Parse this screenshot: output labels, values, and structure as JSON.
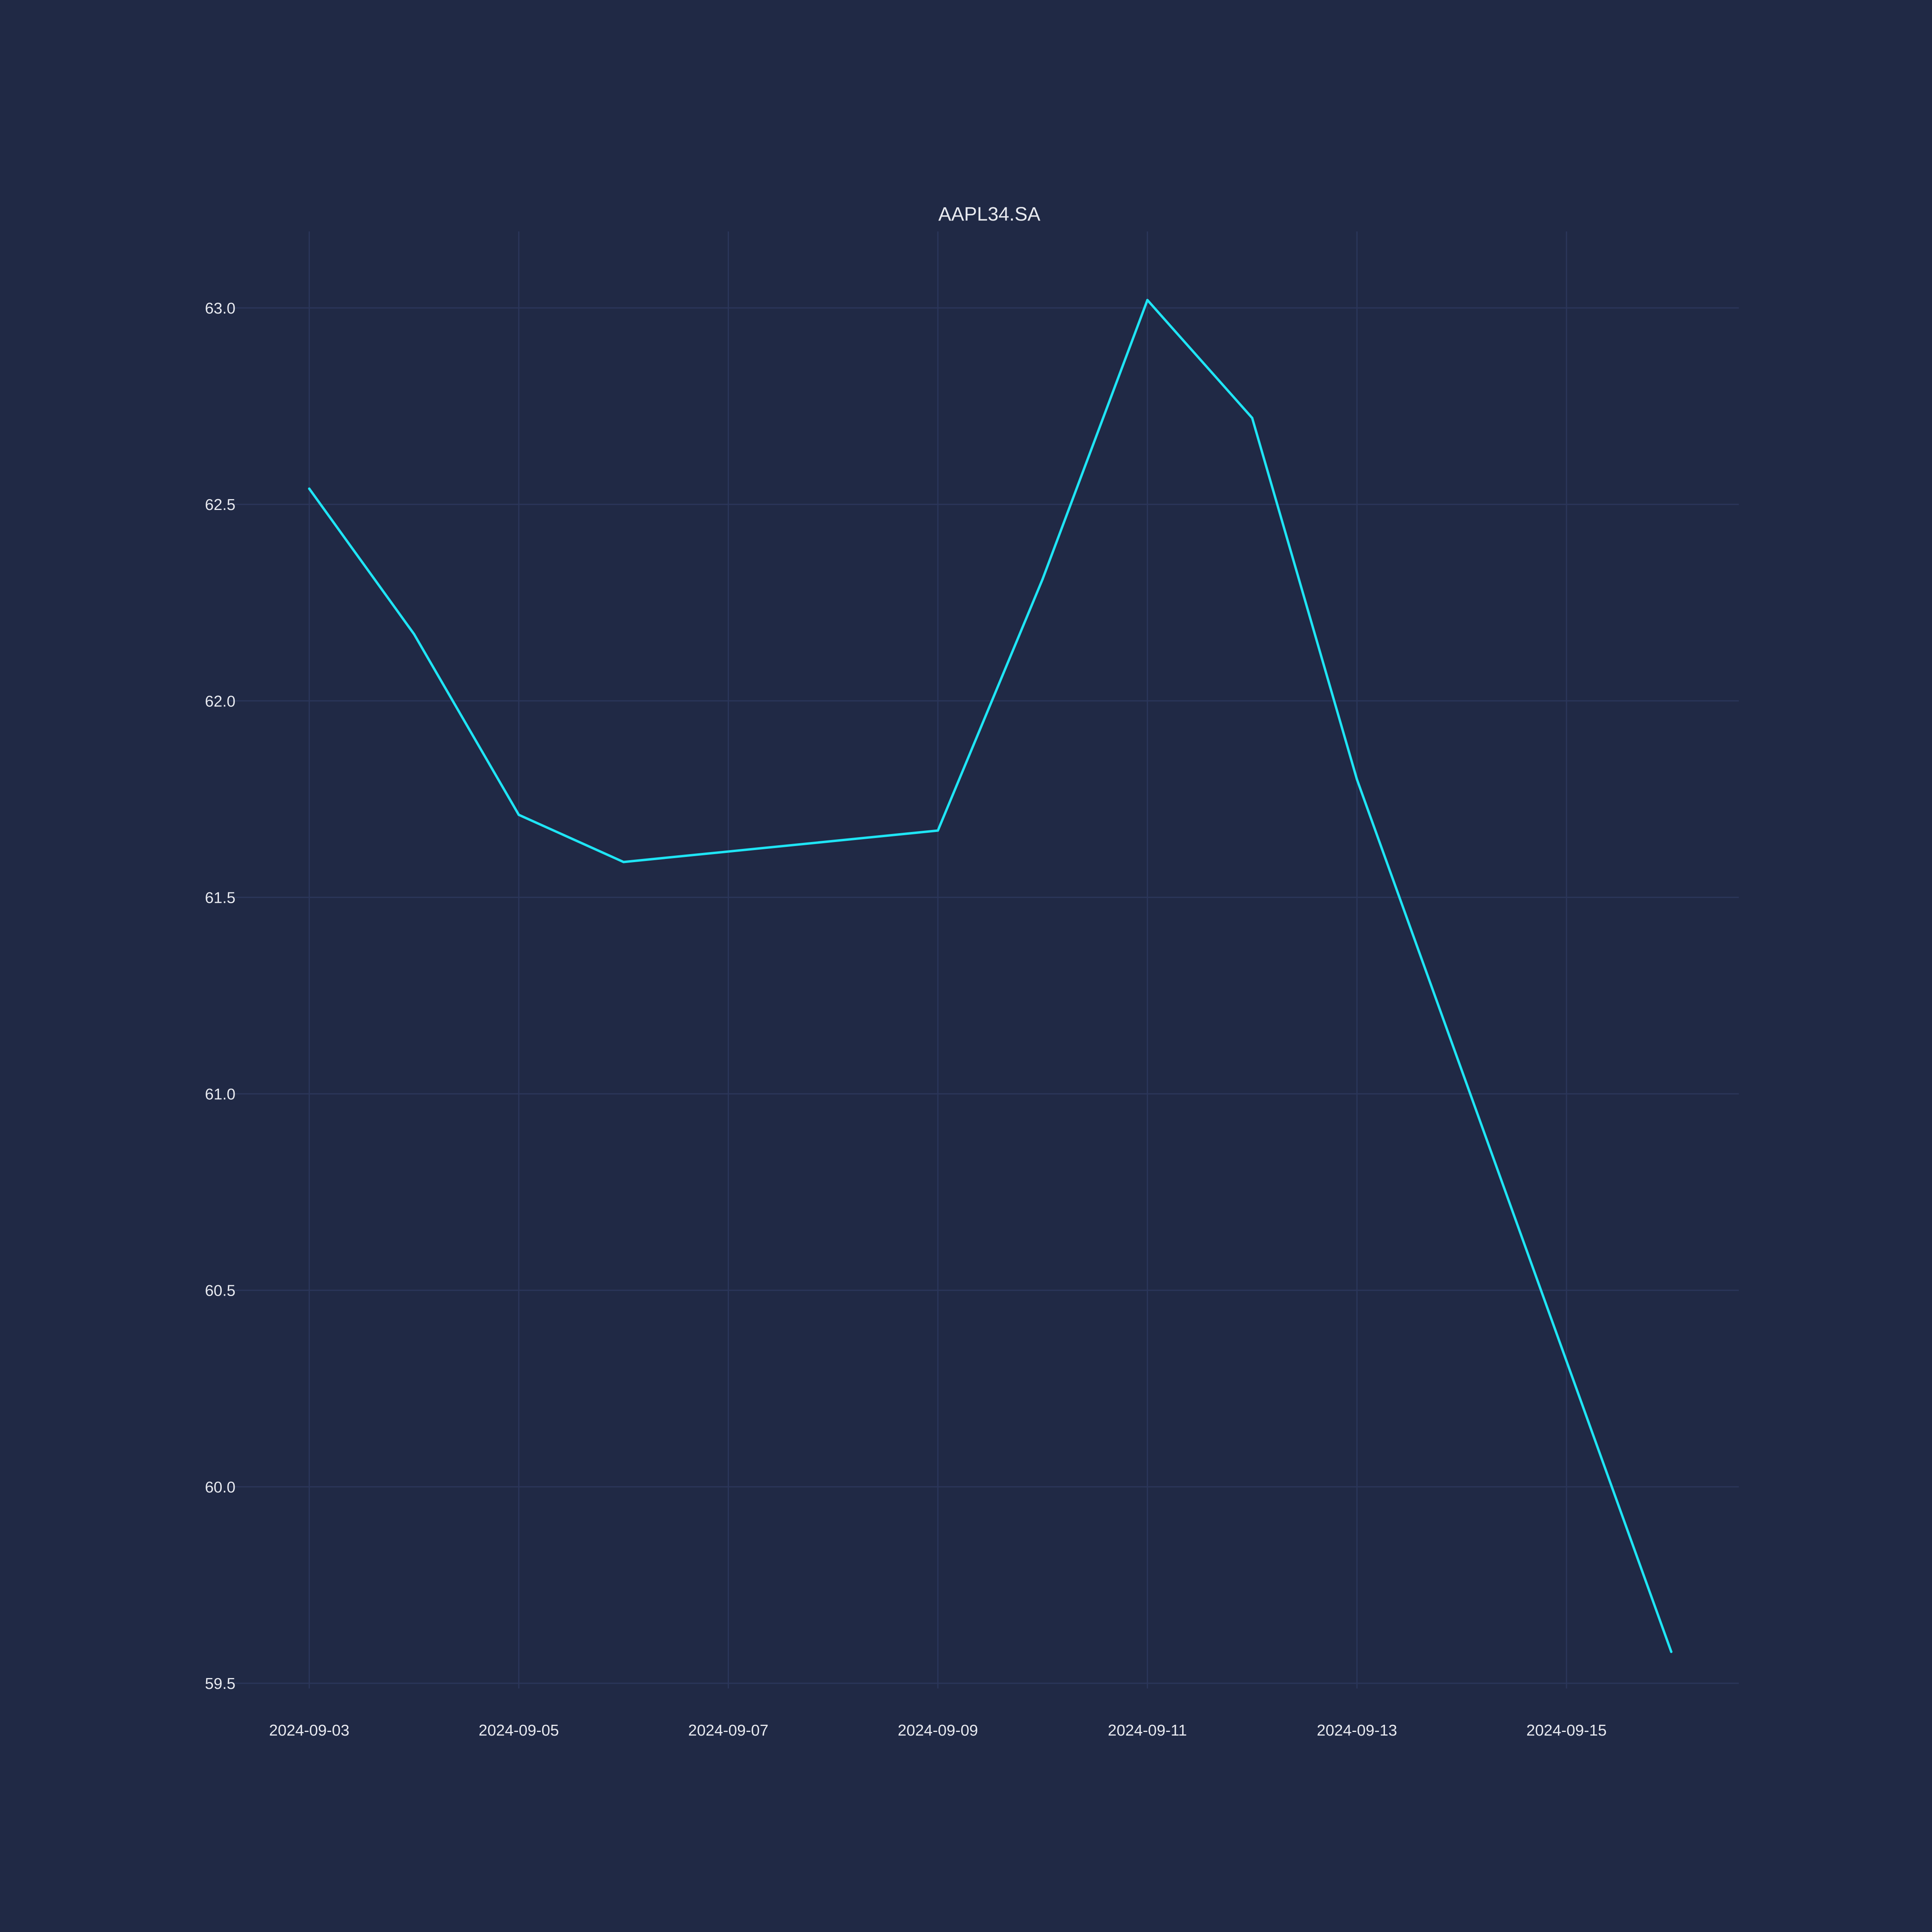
{
  "chart_data": {
    "type": "line",
    "title": "AAPL34.SA",
    "xlabel": "",
    "ylabel": "",
    "x_tick_labels": [
      "2024-09-03",
      "2024-09-05",
      "2024-09-07",
      "2024-09-09",
      "2024-09-11",
      "2024-09-13",
      "2024-09-15"
    ],
    "y_tick_labels": [
      "59.5",
      "60.0",
      "60.5",
      "61.0",
      "61.5",
      "62.0",
      "62.5",
      "63.0"
    ],
    "xlim": [
      "2024-09-02",
      "2024-09-16"
    ],
    "ylim": [
      59.44,
      63.19
    ],
    "grid": true,
    "legend": "none",
    "series": [
      {
        "color": "#1fe5f5",
        "x": [
          "2024-09-03",
          "2024-09-04",
          "2024-09-05",
          "2024-09-06",
          "2024-09-09",
          "2024-09-10",
          "2024-09-11",
          "2024-09-12",
          "2024-09-13",
          "2024-09-16"
        ],
        "y": [
          62.54,
          62.17,
          61.71,
          61.59,
          61.67,
          62.31,
          63.02,
          62.72,
          61.8,
          59.58
        ]
      }
    ],
    "background_color": "#202945",
    "grid_color": "#2b365a",
    "text_color": "#e8eaf0"
  }
}
